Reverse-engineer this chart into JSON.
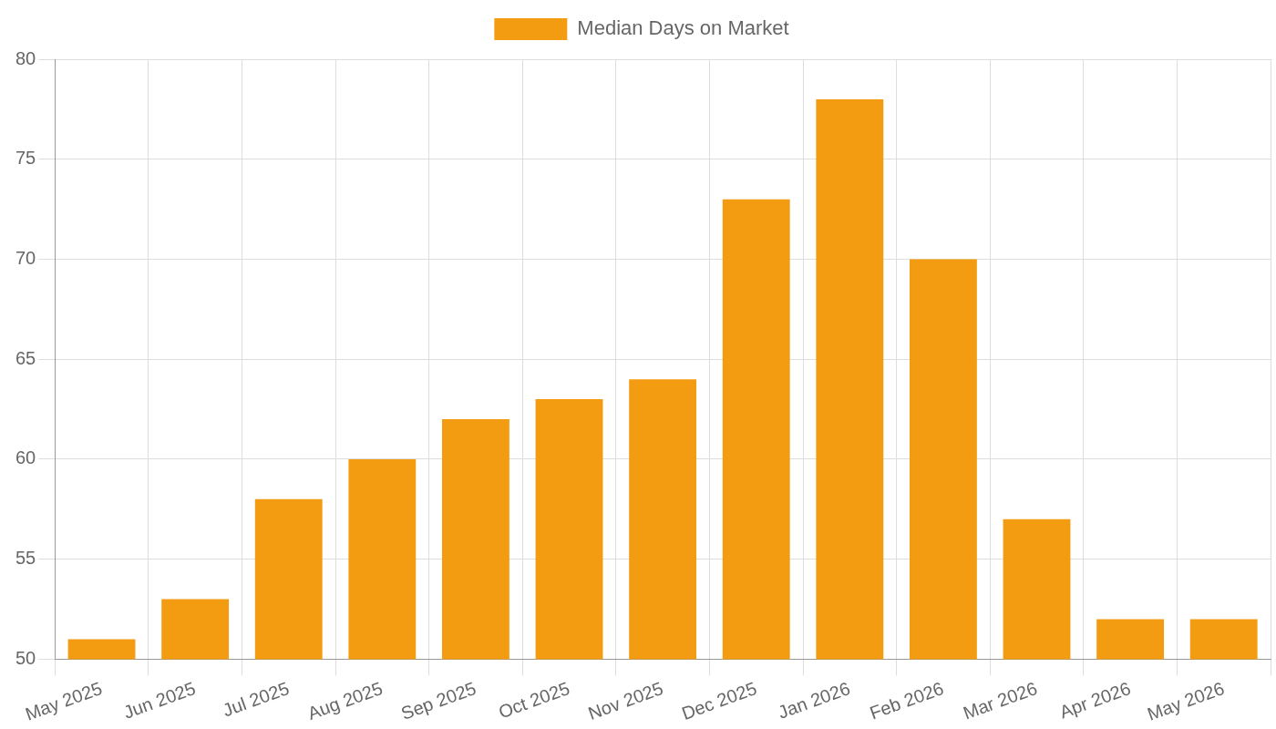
{
  "chart_data": {
    "type": "bar",
    "categories": [
      "May 2025",
      "Jun 2025",
      "Jul 2025",
      "Aug 2025",
      "Sep 2025",
      "Oct 2025",
      "Nov 2025",
      "Dec 2025",
      "Jan 2026",
      "Feb 2026",
      "Mar 2026",
      "Apr 2026",
      "May 2026"
    ],
    "series": [
      {
        "name": "Median Days on Market",
        "color": "#f39c12",
        "values": [
          51,
          53,
          58,
          60,
          62,
          63,
          64,
          73,
          78,
          70,
          57,
          52,
          52
        ]
      }
    ],
    "ylim": [
      50,
      80
    ],
    "yticks": [
      50,
      55,
      60,
      65,
      70,
      75,
      80
    ],
    "grid": true,
    "legend": "top"
  }
}
